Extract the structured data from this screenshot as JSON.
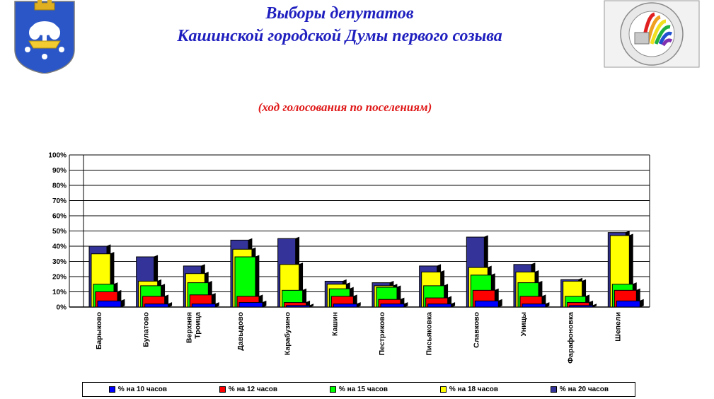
{
  "header": {
    "title_line1": "Выборы депутатов",
    "title_line2": "Кашинской городской Думы первого созыва",
    "subtitle": "(ход голосования по поселениям)"
  },
  "emblems": {
    "left": "kashin-coat-of-arms",
    "right": "cec-russia-emblem"
  },
  "chart_data": {
    "type": "bar",
    "categories": [
      "Барыково",
      "Булатово",
      "Верхняя Троица",
      "Давыдово",
      "Карабузино",
      "Кашин",
      "Пестриково",
      "Письяковка",
      "Славково",
      "Уницы",
      "Фарафоновка",
      "Шепели"
    ],
    "series": [
      {
        "name": "% на 10 часов",
        "color": "#0000ff",
        "values": [
          4,
          2,
          2,
          3,
          1,
          2,
          2,
          2,
          4,
          2,
          1,
          4
        ]
      },
      {
        "name": "% на 12 часов",
        "color": "#ff0000",
        "values": [
          10,
          7,
          8,
          7,
          3,
          7,
          5,
          6,
          11,
          7,
          3,
          11
        ]
      },
      {
        "name": "% на 15 часов",
        "color": "#00ff00",
        "values": [
          15,
          14,
          16,
          33,
          11,
          12,
          13,
          14,
          21,
          16,
          7,
          15
        ]
      },
      {
        "name": "% на 18 часов",
        "color": "#ffff00",
        "values": [
          35,
          17,
          22,
          38,
          28,
          15,
          14,
          23,
          26,
          23,
          17,
          47
        ]
      },
      {
        "name": "% на 20 часов",
        "color": "#333399",
        "values": [
          40,
          33,
          27,
          44,
          45,
          17,
          16,
          27,
          46,
          28,
          18,
          49
        ]
      }
    ],
    "ylim": [
      0,
      100
    ],
    "yticks": [
      "0%",
      "10%",
      "20%",
      "30%",
      "40%",
      "50%",
      "60%",
      "70%",
      "80%",
      "90%",
      "100%"
    ],
    "grid": true,
    "legend_position": "bottom"
  }
}
